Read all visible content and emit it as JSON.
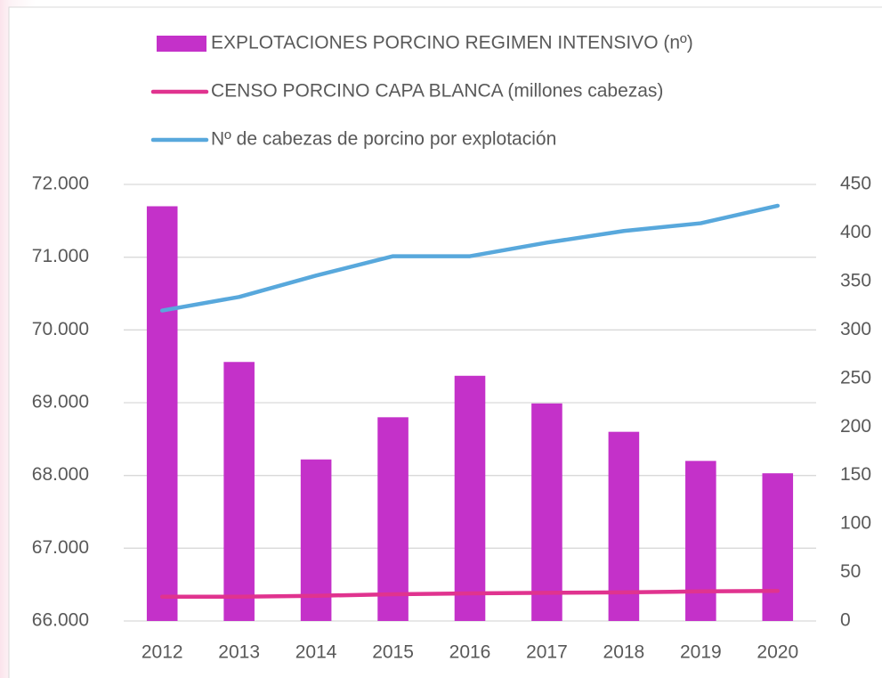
{
  "chart_data": {
    "type": "bar",
    "categories": [
      "2012",
      "2013",
      "2014",
      "2015",
      "2016",
      "2017",
      "2018",
      "2019",
      "2020"
    ],
    "series": [
      {
        "name": "EXPLOTACIONES PORCINO REGIMEN INTENSIVO (nº)",
        "type": "bar",
        "color": "#c431c9",
        "axis": "y",
        "values": [
          71700,
          69560,
          68220,
          68800,
          69370,
          68990,
          68600,
          68200,
          68030
        ]
      },
      {
        "name": "CENSO PORCINO CAPA BLANCA (millones cabezas)",
        "type": "line",
        "color": "#e0338f",
        "axis": "y2",
        "values": [
          25,
          25,
          26,
          27.5,
          28.5,
          29,
          29.5,
          30.5,
          31
        ]
      },
      {
        "name": "Nº de cabezas de porcino por explotación",
        "type": "line",
        "color": "#58a8dc",
        "axis": "y2",
        "values": [
          320,
          334,
          356,
          376,
          376,
          390,
          402,
          410,
          428
        ]
      }
    ],
    "ylim": [
      66000,
      72000
    ],
    "yticks": [
      {
        "value": 66000,
        "label": "66.000"
      },
      {
        "value": 67000,
        "label": "67.000"
      },
      {
        "value": 68000,
        "label": "68.000"
      },
      {
        "value": 69000,
        "label": "69.000"
      },
      {
        "value": 70000,
        "label": "70.000"
      },
      {
        "value": 71000,
        "label": "71.000"
      },
      {
        "value": 72000,
        "label": "72.000"
      }
    ],
    "y2lim": [
      0,
      450
    ],
    "y2ticks": [
      0,
      50,
      100,
      150,
      200,
      250,
      300,
      350,
      400,
      450
    ],
    "grid": true,
    "legend": "top"
  }
}
